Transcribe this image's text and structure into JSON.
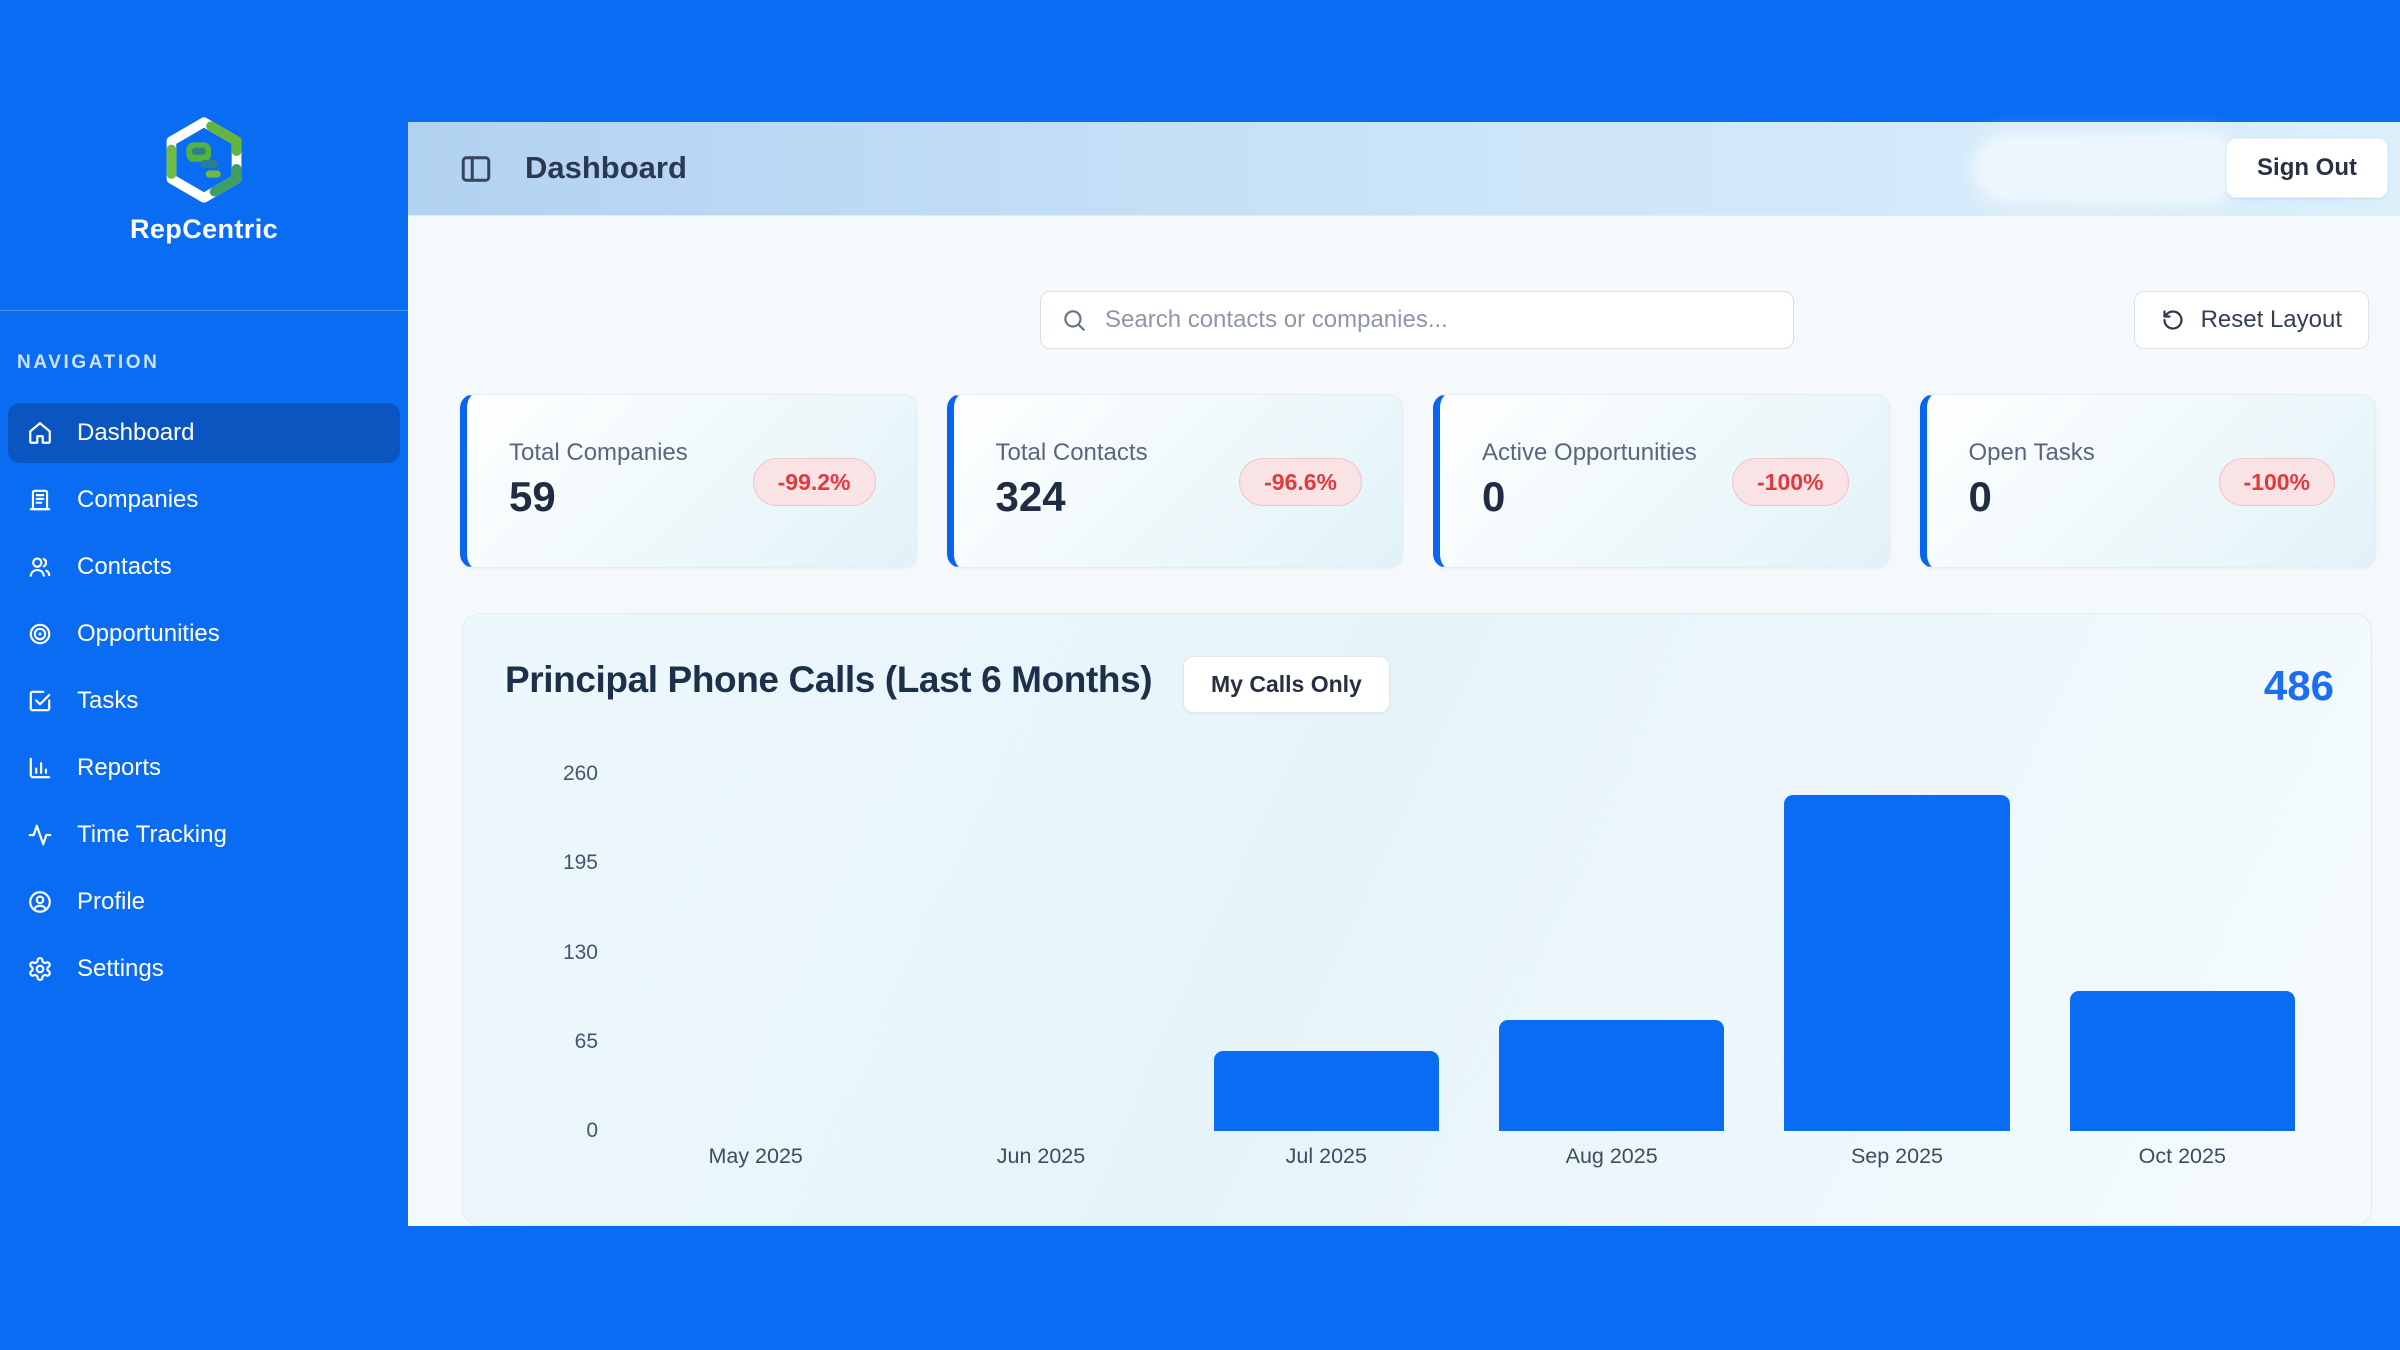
{
  "brand": {
    "name": "RepCentric"
  },
  "sidebar": {
    "section_label": "NAVIGATION",
    "items": [
      {
        "label": "Dashboard",
        "icon": "home",
        "active": true
      },
      {
        "label": "Companies",
        "icon": "building",
        "active": false
      },
      {
        "label": "Contacts",
        "icon": "users",
        "active": false
      },
      {
        "label": "Opportunities",
        "icon": "target",
        "active": false
      },
      {
        "label": "Tasks",
        "icon": "check-square",
        "active": false
      },
      {
        "label": "Reports",
        "icon": "bar-chart",
        "active": false
      },
      {
        "label": "Time Tracking",
        "icon": "activity",
        "active": false
      },
      {
        "label": "Profile",
        "icon": "user-circle",
        "active": false
      },
      {
        "label": "Settings",
        "icon": "gear",
        "active": false
      }
    ]
  },
  "header": {
    "title": "Dashboard",
    "sign_out_label": "Sign Out"
  },
  "toolbar": {
    "search_placeholder": "Search contacts or companies...",
    "reset_label": "Reset Layout"
  },
  "stats": [
    {
      "label": "Total Companies",
      "value": "59",
      "change": "-99.2%"
    },
    {
      "label": "Total Contacts",
      "value": "324",
      "change": "-96.6%"
    },
    {
      "label": "Active Opportunities",
      "value": "0",
      "change": "-100%"
    },
    {
      "label": "Open Tasks",
      "value": "0",
      "change": "-100%"
    }
  ],
  "chart": {
    "title": "Principal Phone Calls (Last 6 Months)",
    "filter_label": "My Calls Only",
    "total": "486"
  },
  "chart_data": {
    "type": "bar",
    "title": "Principal Phone Calls (Last 6 Months)",
    "categories": [
      "May 2025",
      "Jun 2025",
      "Jul 2025",
      "Aug 2025",
      "Sep 2025",
      "Oct 2025"
    ],
    "values": [
      0,
      0,
      58,
      81,
      245,
      102
    ],
    "total": 486,
    "yticks": [
      0,
      65,
      130,
      195,
      260
    ],
    "ylim": [
      0,
      260
    ],
    "xlabel": "",
    "ylabel": "",
    "grid": false,
    "legend": false,
    "bar_color": "#0a6cf2"
  },
  "colors": {
    "primary_blue": "#0a6cf2",
    "active_nav_blue": "#0b55c1",
    "card_accent_blue": "#0866ee",
    "negative_red": "#e03a3f",
    "total_blue": "#1b6ef0"
  }
}
